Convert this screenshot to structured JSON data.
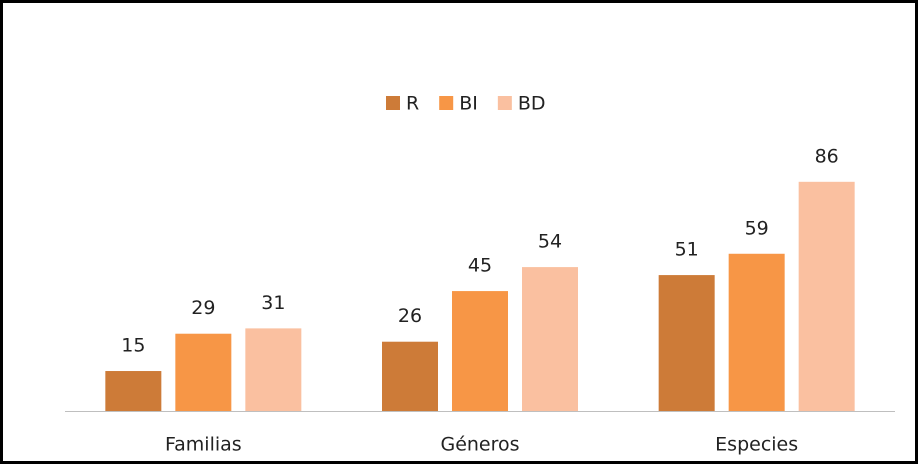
{
  "chart_data": {
    "type": "bar",
    "categories": [
      "Familias",
      "Géneros",
      "Especies"
    ],
    "series": [
      {
        "name": "R",
        "color": "#cd7b38",
        "values": [
          15,
          26,
          51
        ]
      },
      {
        "name": "BI",
        "color": "#f79646",
        "values": [
          29,
          45,
          59
        ]
      },
      {
        "name": "BD",
        "color": "#fac0a0",
        "values": [
          31,
          54,
          86
        ]
      }
    ],
    "legend": "top"
  }
}
